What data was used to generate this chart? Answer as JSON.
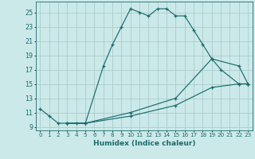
{
  "xlabel": "Humidex (Indice chaleur)",
  "background_color": "#cce9e9",
  "grid_color": "#aacccc",
  "line_color": "#1a6b6b",
  "xlim": [
    -0.5,
    23.5
  ],
  "ylim": [
    8.5,
    26.5
  ],
  "yticks": [
    9,
    11,
    13,
    15,
    17,
    19,
    21,
    23,
    25
  ],
  "xticks": [
    0,
    1,
    2,
    3,
    4,
    5,
    6,
    7,
    8,
    9,
    10,
    11,
    12,
    13,
    14,
    15,
    16,
    17,
    18,
    19,
    20,
    21,
    22,
    23
  ],
  "series1": {
    "x": [
      0,
      1,
      2,
      3,
      4,
      5,
      7,
      8,
      9,
      10,
      11,
      12,
      13,
      14,
      15,
      16,
      17,
      18,
      19,
      20,
      22,
      23
    ],
    "y": [
      11.5,
      10.5,
      9.5,
      9.5,
      9.5,
      9.5,
      17.5,
      20.5,
      23.0,
      25.5,
      25.0,
      24.5,
      25.5,
      25.5,
      24.5,
      24.5,
      22.5,
      20.5,
      18.5,
      17.0,
      15.0,
      15.0
    ]
  },
  "series2": {
    "x": [
      3,
      5,
      10,
      15,
      19,
      22,
      23
    ],
    "y": [
      9.5,
      9.5,
      11.0,
      13.0,
      18.5,
      17.5,
      15.0
    ]
  },
  "series3": {
    "x": [
      3,
      5,
      10,
      15,
      19,
      22,
      23
    ],
    "y": [
      9.5,
      9.5,
      10.5,
      12.0,
      14.5,
      15.0,
      15.0
    ]
  }
}
